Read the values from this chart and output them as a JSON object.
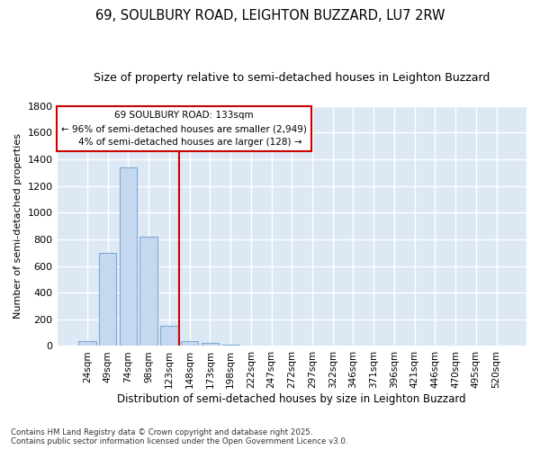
{
  "title1": "69, SOULBURY ROAD, LEIGHTON BUZZARD, LU7 2RW",
  "title2": "Size of property relative to semi-detached houses in Leighton Buzzard",
  "xlabel": "Distribution of semi-detached houses by size in Leighton Buzzard",
  "ylabel": "Number of semi-detached properties",
  "categories": [
    "24sqm",
    "49sqm",
    "74sqm",
    "98sqm",
    "123sqm",
    "148sqm",
    "173sqm",
    "198sqm",
    "222sqm",
    "247sqm",
    "272sqm",
    "297sqm",
    "322sqm",
    "346sqm",
    "371sqm",
    "396sqm",
    "421sqm",
    "446sqm",
    "470sqm",
    "495sqm",
    "520sqm"
  ],
  "values": [
    40,
    700,
    1340,
    820,
    150,
    40,
    25,
    12,
    0,
    0,
    0,
    0,
    0,
    0,
    0,
    0,
    0,
    0,
    0,
    0,
    0
  ],
  "bar_color": "#c5d8f0",
  "bar_edge_color": "#7aadd4",
  "vline_color": "#cc0000",
  "annotation_title": "69 SOULBURY ROAD: 133sqm",
  "annotation_line1": "← 96% of semi-detached houses are smaller (2,949)",
  "annotation_line2": "    4% of semi-detached houses are larger (128) →",
  "annotation_box_color": "#cc0000",
  "ylim": [
    0,
    1800
  ],
  "yticks": [
    0,
    200,
    400,
    600,
    800,
    1000,
    1200,
    1400,
    1600,
    1800
  ],
  "bg_color": "#dde8f5",
  "grid_color": "#ffffff",
  "footnote": "Contains HM Land Registry data © Crown copyright and database right 2025.\nContains public sector information licensed under the Open Government Licence v3.0.",
  "title1_fontsize": 10.5,
  "title2_fontsize": 9,
  "xlabel_fontsize": 8.5,
  "ylabel_fontsize": 8
}
